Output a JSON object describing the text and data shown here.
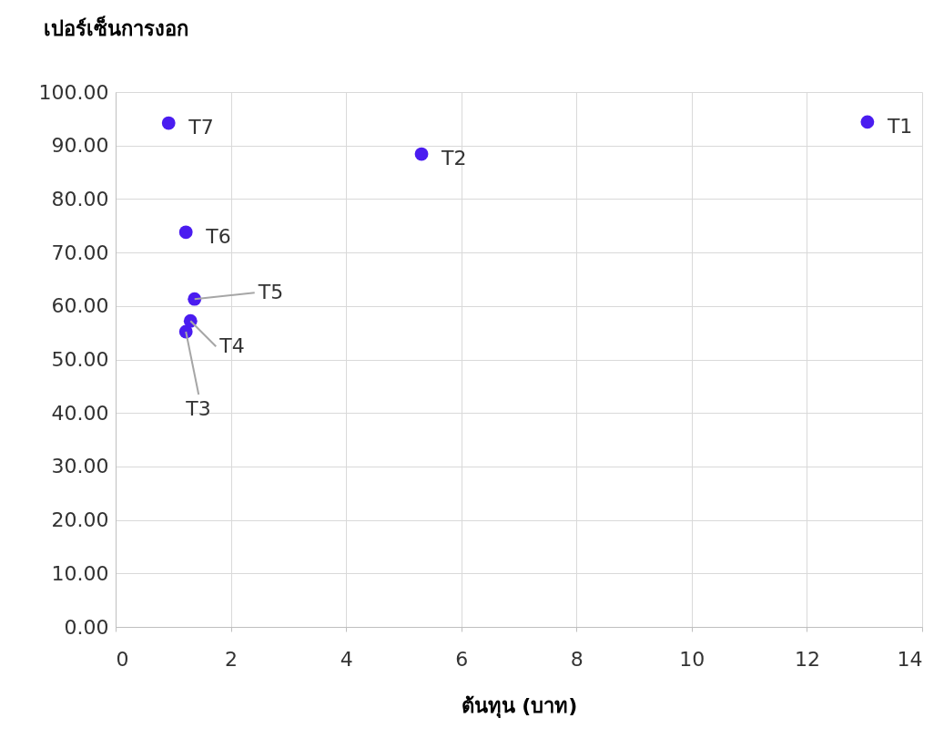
{
  "chart_data": {
    "type": "scatter",
    "xlabel": "ต้นทุน (บาท)",
    "ylabel": "เปอร์เซ็นการงอก",
    "x": [
      13.05,
      5.31,
      1.22,
      1.3,
      1.37,
      1.22,
      0.92
    ],
    "series": [
      {
        "color": "#4a1cf0",
        "values": [
          94.4,
          88.4,
          55.2,
          57.2,
          61.3,
          73.8,
          94.2
        ]
      }
    ],
    "annotations": [
      {
        "text": "T1",
        "x": 13.05,
        "y": 94.4
      },
      {
        "text": "T2",
        "x": 5.31,
        "y": 88.4
      },
      {
        "text": "T3",
        "x": 1.22,
        "y": 55.2
      },
      {
        "text": "T4",
        "x": 1.3,
        "y": 57.2
      },
      {
        "text": "T5",
        "x": 1.37,
        "y": 61.3
      },
      {
        "text": "T6",
        "x": 1.22,
        "y": 73.8
      },
      {
        "text": "T7",
        "x": 0.92,
        "y": 94.2
      }
    ],
    "xlim": [
      0,
      14
    ],
    "xticks": [
      0,
      2,
      4,
      6,
      8,
      10,
      12,
      14
    ],
    "ylim": [
      0,
      100
    ],
    "yticks": [
      {
        "value": 0,
        "label": "0.00"
      },
      {
        "value": 10,
        "label": "10.00"
      },
      {
        "value": 20,
        "label": "20.00"
      },
      {
        "value": 30,
        "label": "30.00"
      },
      {
        "value": 40,
        "label": "40.00"
      },
      {
        "value": 50,
        "label": "50.00"
      },
      {
        "value": 60,
        "label": "60.00"
      },
      {
        "value": 70,
        "label": "70.00"
      },
      {
        "value": 80,
        "label": "80.00"
      },
      {
        "value": 90,
        "label": "90.00"
      },
      {
        "value": 100,
        "label": "100.00"
      }
    ],
    "grid": true,
    "marker": "circle"
  }
}
